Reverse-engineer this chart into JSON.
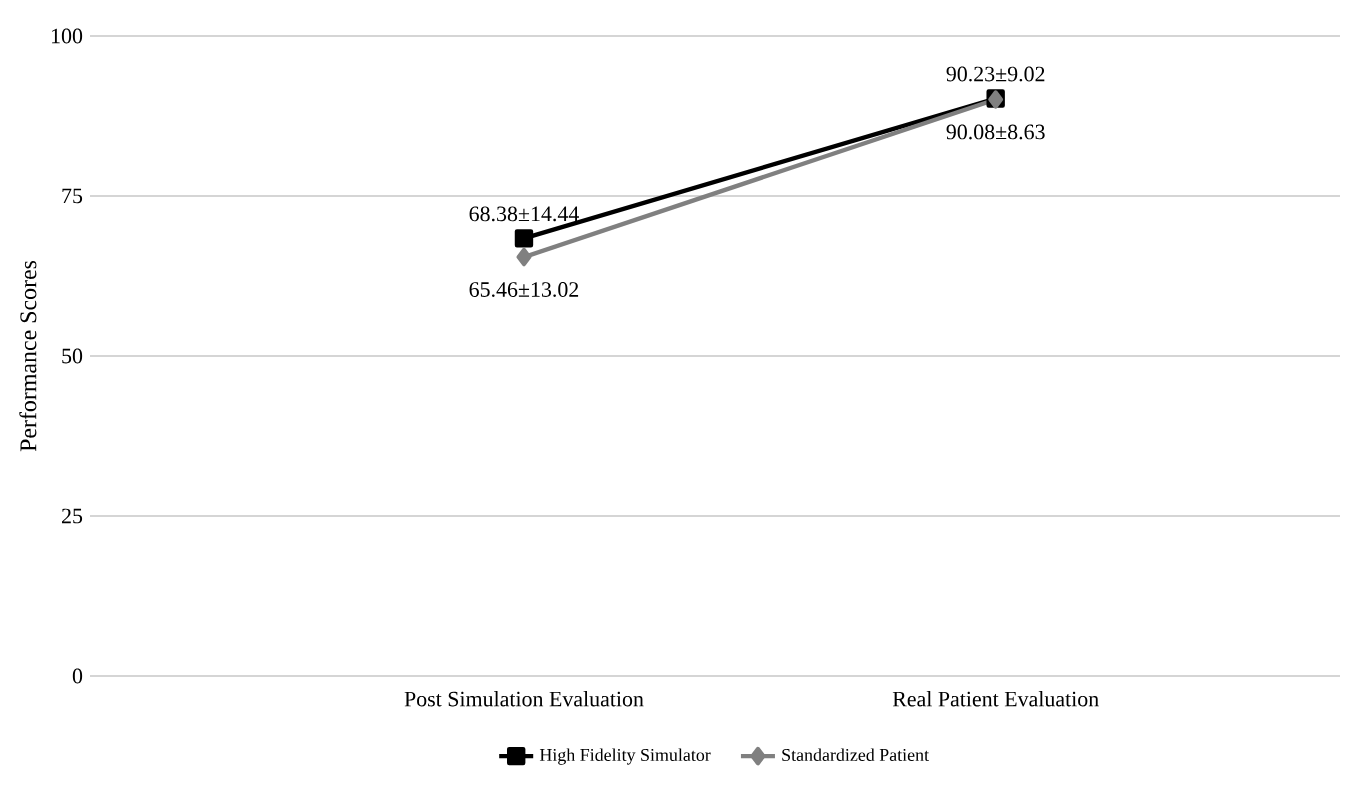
{
  "chart_data": {
    "type": "line",
    "ylabel": "Performance Scores",
    "categories": [
      "Post Simulation Evaluation",
      "Real Patient Evaluation"
    ],
    "series": [
      {
        "name": "High Fidelity Simulator",
        "color": "#000000",
        "marker": "square",
        "values": [
          68.38,
          90.23
        ],
        "value_labels": [
          "68.38±14.44",
          "90.23±9.02"
        ]
      },
      {
        "name": "Standardized Patient",
        "color": "#808080",
        "marker": "diamond",
        "values": [
          65.46,
          90.08
        ],
        "value_labels": [
          "65.46±13.02",
          "90.08±8.63"
        ]
      }
    ],
    "ylim": [
      0,
      100
    ],
    "yticks": [
      0,
      25,
      50,
      75,
      100
    ],
    "grid": "y",
    "legend": "bottom"
  }
}
